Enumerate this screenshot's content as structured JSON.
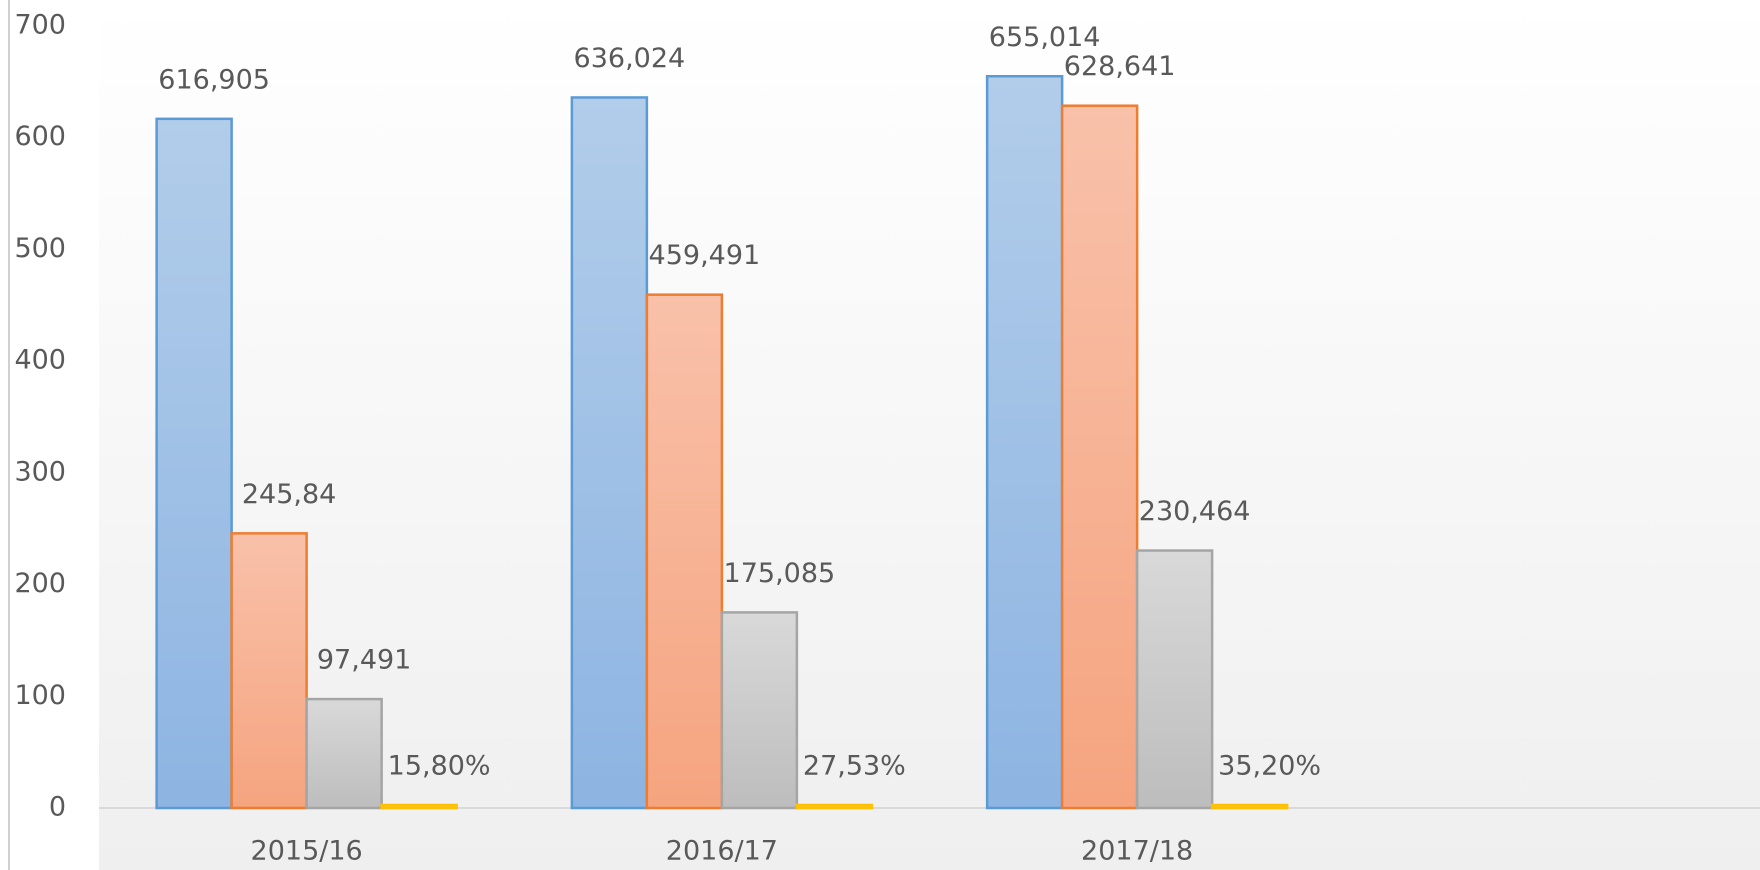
{
  "chart_data": {
    "type": "bar",
    "categories": [
      "2015/16",
      "2016/17",
      "2017/18",
      null
    ],
    "series": [
      {
        "color": "#5b9bd5",
        "values": [
          616.905,
          636.024,
          655.014,
          null
        ],
        "value_labels": [
          "616,905",
          "636,024",
          "655,014",
          null
        ]
      },
      {
        "color": "#ed7d31",
        "values": [
          245.84,
          459.491,
          628.641,
          null
        ],
        "value_labels": [
          "245,84",
          "459,491",
          "628,641",
          null
        ]
      },
      {
        "color": "#a5a5a5",
        "values": [
          97.491,
          175.085,
          230.464,
          null
        ],
        "value_labels": [
          "97,491",
          "175,085",
          "230,464",
          null
        ]
      },
      {
        "color": "#ffc000",
        "values": [
          0.158,
          0.2753,
          0.352,
          null
        ],
        "value_labels": [
          "15,80%",
          "27,53%",
          "35,20%",
          null
        ]
      }
    ],
    "ylim": [
      0,
      700
    ],
    "yticks": [
      0,
      100,
      200,
      300,
      400,
      500,
      600,
      700
    ],
    "grid": false
  }
}
